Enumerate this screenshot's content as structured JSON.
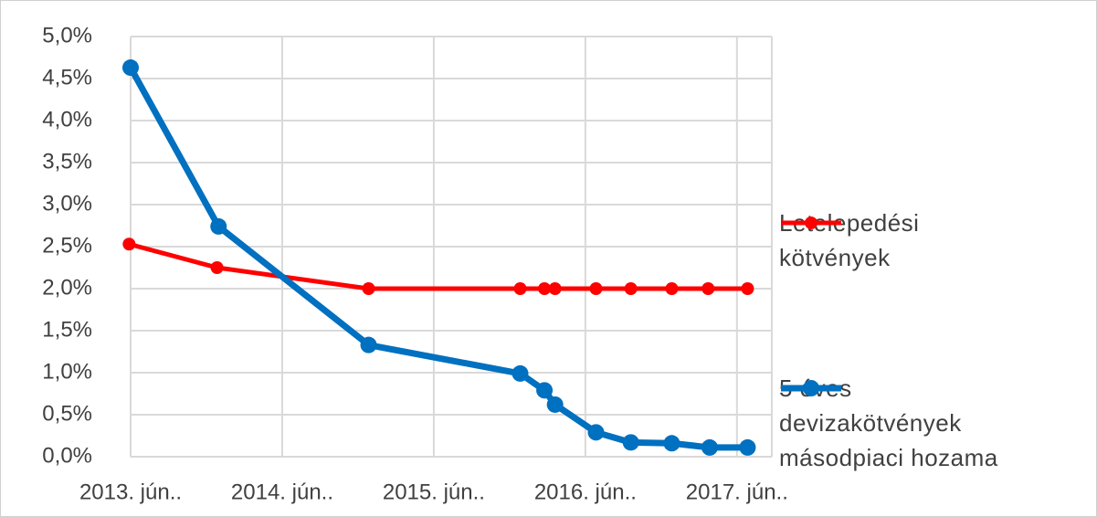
{
  "chart_data": {
    "type": "line",
    "xticks": [
      {
        "value": 2013.42,
        "label": "2013. jún.."
      },
      {
        "value": 2014.42,
        "label": "2014. jún.."
      },
      {
        "value": 2015.42,
        "label": "2015. jún.."
      },
      {
        "value": 2016.42,
        "label": "2016. jún.."
      },
      {
        "value": 2017.42,
        "label": "2017. jún.."
      }
    ],
    "xlim": [
      2013.42,
      2017.65
    ],
    "ylim": [
      0,
      5
    ],
    "yticks": [
      {
        "value": 0,
        "label": "0,0%"
      },
      {
        "value": 0.5,
        "label": "0,5%"
      },
      {
        "value": 1,
        "label": "1,0%"
      },
      {
        "value": 1.5,
        "label": "1,5%"
      },
      {
        "value": 2,
        "label": "2,0%"
      },
      {
        "value": 2.5,
        "label": "2,5%"
      },
      {
        "value": 3,
        "label": "3,0%"
      },
      {
        "value": 3.5,
        "label": "3,5%"
      },
      {
        "value": 4,
        "label": "4,0%"
      },
      {
        "value": 4.5,
        "label": "4,5%"
      },
      {
        "value": 5,
        "label": "5,0%"
      }
    ],
    "grid": true,
    "legend": "right",
    "series": [
      {
        "name": "Letelepedési kötvények",
        "color": "#ff0000",
        "x": [
          2013.41,
          2013.99,
          2014.99,
          2015.99,
          2016.15,
          2016.22,
          2016.49,
          2016.72,
          2016.99,
          2017.23,
          2017.49
        ],
        "values": [
          2.53,
          2.25,
          2.0,
          2.0,
          2.0,
          2.0,
          2.0,
          2.0,
          2.0,
          2.0,
          2.0
        ]
      },
      {
        "name": "5 éves devizakötvények másodpiaci hozama",
        "color": "#0070c0",
        "x": [
          2013.42,
          2014.0,
          2014.99,
          2015.99,
          2016.15,
          2016.22,
          2016.49,
          2016.72,
          2016.99,
          2017.24,
          2017.49
        ],
        "values": [
          4.63,
          2.74,
          1.33,
          0.99,
          0.79,
          0.62,
          0.29,
          0.17,
          0.16,
          0.11,
          0.11
        ]
      }
    ]
  }
}
